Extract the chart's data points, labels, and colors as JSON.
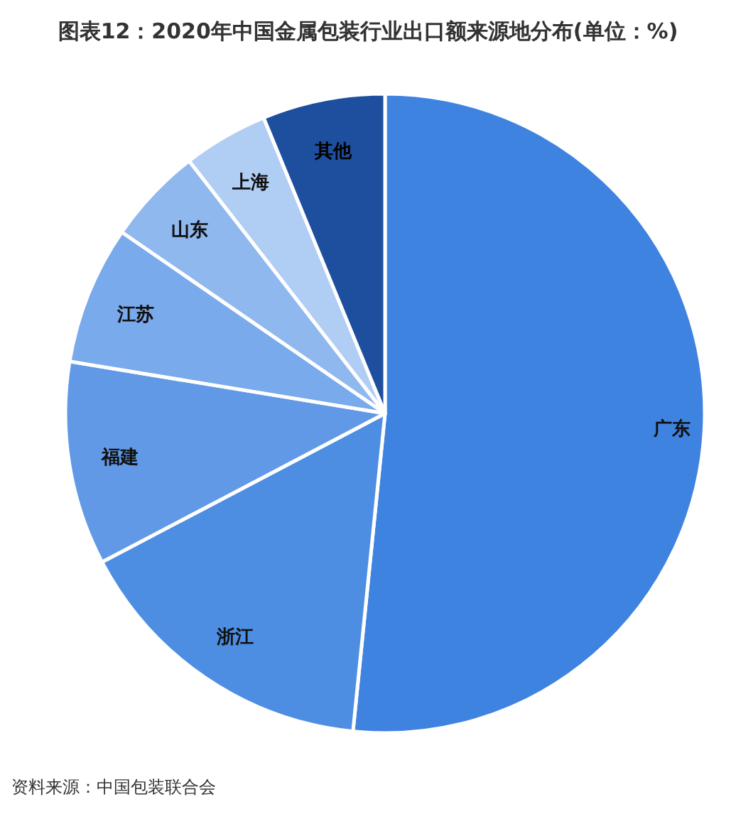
{
  "chart_data": {
    "type": "pie",
    "title": "图表12：2020年中国金属包装行业出口额来源地分布(单位：%)",
    "categories": [
      "广东",
      "浙江",
      "福建",
      "江苏",
      "山东",
      "上海",
      "其他"
    ],
    "values": [
      51.6,
      15.7,
      10.3,
      7.0,
      4.9,
      4.3,
      6.2
    ],
    "colors": [
      "#3f83e0",
      "#4d8ee3",
      "#6299e6",
      "#79aaeb",
      "#8fb8ef",
      "#b0cdf4",
      "#1e4f9e"
    ],
    "annotations": [
      "资料来源：中国包装联合会"
    ]
  }
}
